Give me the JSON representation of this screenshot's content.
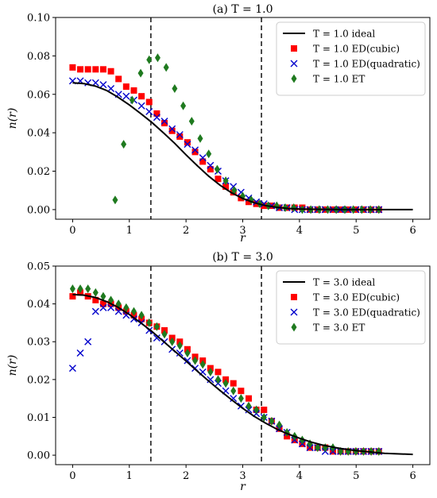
{
  "chart_data": [
    {
      "type": "scatter",
      "title": "(a) T = 1.0",
      "xlabel": "r",
      "ylabel": "n(r)",
      "xlim": [
        -0.3,
        6.3
      ],
      "ylim": [
        -0.005,
        0.1
      ],
      "xticks": [
        "0",
        "1",
        "2",
        "3",
        "4",
        "5",
        "6"
      ],
      "xtick_values": [
        0,
        1,
        2,
        3,
        4,
        5,
        6
      ],
      "yticks": [
        "0.00",
        "0.02",
        "0.04",
        "0.06",
        "0.08",
        "0.10"
      ],
      "ytick_values": [
        0,
        0.02,
        0.04,
        0.06,
        0.08,
        0.1
      ],
      "vlines": [
        1.38,
        3.33
      ],
      "legend_position": "top-right",
      "series": [
        {
          "name": "T = 1.0 ideal",
          "kind": "line",
          "color": "#000000",
          "x": [
            0,
            0.2,
            0.4,
            0.6,
            0.8,
            1.0,
            1.2,
            1.4,
            1.6,
            1.8,
            2.0,
            2.2,
            2.4,
            2.6,
            2.8,
            3.0,
            3.2,
            3.4,
            3.6,
            3.8,
            4.0,
            4.5,
            5.0,
            5.5,
            6.0
          ],
          "y": [
            0.066,
            0.0656,
            0.0643,
            0.062,
            0.0585,
            0.0545,
            0.05,
            0.0453,
            0.04,
            0.0345,
            0.0285,
            0.0228,
            0.0174,
            0.0127,
            0.0088,
            0.0058,
            0.0036,
            0.0021,
            0.0012,
            0.0006,
            0.0003,
            0.0001,
            0.0,
            0.0,
            0.0
          ]
        },
        {
          "name": "T = 1.0 ED(cubic)",
          "kind": "square",
          "color": "#ff0000",
          "x": [
            0,
            0.135,
            0.27,
            0.405,
            0.54,
            0.675,
            0.81,
            0.945,
            1.08,
            1.215,
            1.35,
            1.485,
            1.62,
            1.755,
            1.89,
            2.025,
            2.16,
            2.295,
            2.43,
            2.565,
            2.7,
            2.835,
            2.97,
            3.105,
            3.24,
            3.375,
            3.51,
            3.645,
            3.78,
            3.915,
            4.05,
            4.185,
            4.32,
            4.455,
            4.59,
            4.725,
            4.86,
            4.995,
            5.13,
            5.265,
            5.4
          ],
          "y": [
            0.074,
            0.073,
            0.073,
            0.073,
            0.073,
            0.072,
            0.068,
            0.064,
            0.062,
            0.059,
            0.056,
            0.05,
            0.045,
            0.041,
            0.038,
            0.035,
            0.03,
            0.025,
            0.021,
            0.016,
            0.012,
            0.009,
            0.006,
            0.004,
            0.003,
            0.002,
            0.002,
            0.001,
            0.001,
            0.001,
            0.001,
            0.0,
            0.0,
            0.0,
            0.0,
            0.0,
            0.0,
            0.0,
            0.0,
            0.0,
            0.0
          ]
        },
        {
          "name": "T = 1.0 ED(quadratic)",
          "kind": "cross",
          "color": "#0000cc",
          "x": [
            0,
            0.135,
            0.27,
            0.405,
            0.54,
            0.675,
            0.81,
            0.945,
            1.08,
            1.215,
            1.35,
            1.485,
            1.62,
            1.755,
            1.89,
            2.025,
            2.16,
            2.295,
            2.43,
            2.565,
            2.7,
            2.835,
            2.97,
            3.105,
            3.24,
            3.375,
            3.51,
            3.645,
            3.78,
            3.915,
            4.05,
            4.185,
            4.32,
            4.455,
            4.59,
            4.725,
            4.86,
            4.995,
            5.13,
            5.265,
            5.4
          ],
          "y": [
            0.067,
            0.067,
            0.066,
            0.066,
            0.065,
            0.063,
            0.06,
            0.059,
            0.057,
            0.054,
            0.051,
            0.048,
            0.046,
            0.042,
            0.039,
            0.034,
            0.031,
            0.027,
            0.023,
            0.02,
            0.015,
            0.012,
            0.009,
            0.006,
            0.004,
            0.003,
            0.002,
            0.001,
            0.001,
            0.0,
            0.0,
            0.0,
            0.0,
            0.0,
            0.0,
            0.0,
            0.0,
            0.0,
            0.0,
            0.0,
            0.0
          ]
        },
        {
          "name": "T = 1.0 ET",
          "kind": "diamond",
          "color": "#1f7a1f",
          "x": [
            0.75,
            0.9,
            1.05,
            1.2,
            1.35,
            1.5,
            1.65,
            1.8,
            1.95,
            2.1,
            2.25,
            2.4,
            2.55,
            2.7,
            2.85,
            3.0,
            3.15,
            3.3,
            3.45,
            3.6,
            3.75,
            3.9,
            4.05,
            4.2,
            4.35,
            4.5,
            4.65,
            4.8,
            4.95,
            5.1,
            5.25,
            5.4
          ],
          "y": [
            0.005,
            0.034,
            0.057,
            0.071,
            0.078,
            0.079,
            0.074,
            0.063,
            0.054,
            0.046,
            0.037,
            0.029,
            0.021,
            0.015,
            0.01,
            0.007,
            0.005,
            0.003,
            0.002,
            0.002,
            0.001,
            0.001,
            0.0,
            0.0,
            0.0,
            0.0,
            0.0,
            0.0,
            0.0,
            0.0,
            0.0,
            0.0
          ]
        }
      ]
    },
    {
      "type": "scatter",
      "title": "(b) T = 3.0",
      "xlabel": "r",
      "ylabel": "n(r)",
      "xlim": [
        -0.3,
        6.3
      ],
      "ylim": [
        -0.0025,
        0.05
      ],
      "xticks": [
        "0",
        "1",
        "2",
        "3",
        "4",
        "5",
        "6"
      ],
      "xtick_values": [
        0,
        1,
        2,
        3,
        4,
        5,
        6
      ],
      "yticks": [
        "0.00",
        "0.01",
        "0.02",
        "0.03",
        "0.04",
        "0.05"
      ],
      "ytick_values": [
        0,
        0.01,
        0.02,
        0.03,
        0.04,
        0.05
      ],
      "vlines": [
        1.38,
        3.33
      ],
      "legend_position": "top-right",
      "series": [
        {
          "name": "T = 3.0 ideal",
          "kind": "line",
          "color": "#000000",
          "x": [
            0,
            0.2,
            0.4,
            0.6,
            0.8,
            1.0,
            1.2,
            1.4,
            1.6,
            1.8,
            2.0,
            2.2,
            2.4,
            2.6,
            2.8,
            3.0,
            3.2,
            3.4,
            3.6,
            3.8,
            4.0,
            4.2,
            4.4,
            4.6,
            4.8,
            5.0,
            5.5,
            6.0
          ],
          "y": [
            0.0425,
            0.0423,
            0.0417,
            0.0406,
            0.0391,
            0.0372,
            0.035,
            0.0327,
            0.0301,
            0.0275,
            0.0249,
            0.0222,
            0.0196,
            0.0171,
            0.0147,
            0.0124,
            0.0103,
            0.0085,
            0.0069,
            0.0056,
            0.0045,
            0.0035,
            0.0027,
            0.0021,
            0.0016,
            0.0012,
            0.0005,
            0.0002
          ]
        },
        {
          "name": "T = 3.0 ED(cubic)",
          "kind": "square",
          "color": "#ff0000",
          "x": [
            0,
            0.135,
            0.27,
            0.405,
            0.54,
            0.675,
            0.81,
            0.945,
            1.08,
            1.215,
            1.35,
            1.485,
            1.62,
            1.755,
            1.89,
            2.025,
            2.16,
            2.295,
            2.43,
            2.565,
            2.7,
            2.835,
            2.97,
            3.105,
            3.24,
            3.375,
            3.51,
            3.645,
            3.78,
            3.915,
            4.05,
            4.185,
            4.32,
            4.455,
            4.59,
            4.725,
            4.86,
            4.995,
            5.13,
            5.265,
            5.4
          ],
          "y": [
            0.042,
            0.043,
            0.042,
            0.041,
            0.04,
            0.04,
            0.039,
            0.038,
            0.037,
            0.036,
            0.035,
            0.034,
            0.033,
            0.031,
            0.03,
            0.028,
            0.026,
            0.025,
            0.023,
            0.022,
            0.02,
            0.019,
            0.017,
            0.015,
            0.012,
            0.012,
            0.009,
            0.007,
            0.005,
            0.004,
            0.003,
            0.002,
            0.002,
            0.002,
            0.001,
            0.001,
            0.001,
            0.001,
            0.001,
            0.001,
            0.001
          ]
        },
        {
          "name": "T = 3.0 ED(quadratic)",
          "kind": "cross",
          "color": "#0000cc",
          "x": [
            0,
            0.135,
            0.27,
            0.405,
            0.54,
            0.675,
            0.81,
            0.945,
            1.08,
            1.215,
            1.35,
            1.485,
            1.62,
            1.755,
            1.89,
            2.025,
            2.16,
            2.295,
            2.43,
            2.565,
            2.7,
            2.835,
            2.97,
            3.105,
            3.24,
            3.375,
            3.51,
            3.645,
            3.78,
            3.915,
            4.05,
            4.185,
            4.32,
            4.455,
            4.59,
            4.725,
            4.86,
            4.995,
            5.13,
            5.265,
            5.4
          ],
          "y": [
            0.023,
            0.027,
            0.03,
            0.038,
            0.039,
            0.039,
            0.038,
            0.037,
            0.036,
            0.035,
            0.033,
            0.031,
            0.03,
            0.028,
            0.027,
            0.025,
            0.023,
            0.022,
            0.02,
            0.019,
            0.017,
            0.015,
            0.013,
            0.012,
            0.011,
            0.01,
            0.009,
            0.007,
            0.006,
            0.004,
            0.003,
            0.002,
            0.002,
            0.001,
            0.001,
            0.001,
            0.001,
            0.001,
            0.001,
            0.001,
            0.001
          ]
        },
        {
          "name": "T = 3.0 ET",
          "kind": "diamond",
          "color": "#1f7a1f",
          "x": [
            0,
            0.135,
            0.27,
            0.405,
            0.54,
            0.675,
            0.81,
            0.945,
            1.08,
            1.215,
            1.35,
            1.485,
            1.62,
            1.755,
            1.89,
            2.025,
            2.16,
            2.295,
            2.43,
            2.565,
            2.7,
            2.835,
            2.97,
            3.105,
            3.24,
            3.375,
            3.51,
            3.645,
            3.78,
            3.915,
            4.05,
            4.185,
            4.32,
            4.455,
            4.59,
            4.725,
            4.86,
            4.995,
            5.13,
            5.265,
            5.4
          ],
          "y": [
            0.044,
            0.044,
            0.044,
            0.043,
            0.042,
            0.041,
            0.04,
            0.039,
            0.038,
            0.037,
            0.035,
            0.034,
            0.032,
            0.03,
            0.029,
            0.027,
            0.025,
            0.024,
            0.022,
            0.02,
            0.019,
            0.017,
            0.015,
            0.013,
            0.012,
            0.01,
            0.009,
            0.008,
            0.006,
            0.005,
            0.004,
            0.003,
            0.002,
            0.002,
            0.002,
            0.001,
            0.001,
            0.001,
            0.001,
            0.001,
            0.001
          ]
        }
      ]
    }
  ]
}
